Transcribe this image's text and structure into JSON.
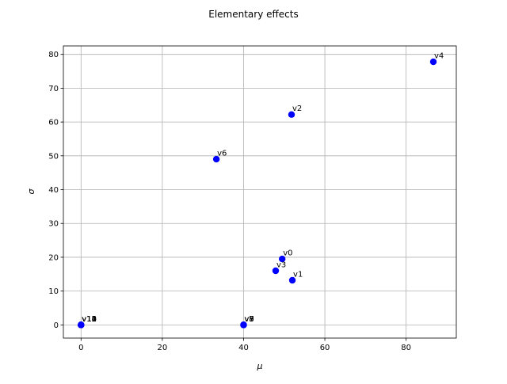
{
  "chart_data": {
    "type": "scatter",
    "title": "Elementary effects",
    "xlabel": "μ",
    "ylabel": "σ",
    "xlim": [
      -4.35,
      92.35
    ],
    "ylim": [
      -3.9,
      82.5
    ],
    "xticks": [
      0,
      20,
      40,
      60,
      80
    ],
    "yticks": [
      0,
      10,
      20,
      30,
      40,
      50,
      60,
      70,
      80
    ],
    "grid": true,
    "marker_color": "#0000ff",
    "points": [
      {
        "label": "v0",
        "x": 49.5,
        "y": 19.5
      },
      {
        "label": "v1",
        "x": 52.0,
        "y": 13.2
      },
      {
        "label": "v2",
        "x": 51.8,
        "y": 62.2
      },
      {
        "label": "v3",
        "x": 47.9,
        "y": 16.0
      },
      {
        "label": "v4",
        "x": 86.7,
        "y": 77.8
      },
      {
        "label": "v5",
        "x": 40.0,
        "y": 0.0
      },
      {
        "label": "v6",
        "x": 33.3,
        "y": 49.0
      },
      {
        "label": "v7",
        "x": 40.0,
        "y": 0.0
      },
      {
        "label": "v8",
        "x": 40.0,
        "y": 0.0
      },
      {
        "label": "v9",
        "x": 40.0,
        "y": 0.0
      },
      {
        "label": "v10",
        "x": 0.0,
        "y": 0.0
      },
      {
        "label": "v11",
        "x": 0.0,
        "y": 0.0
      },
      {
        "label": "v12",
        "x": 0.0,
        "y": 0.0
      },
      {
        "label": "v13",
        "x": 0.0,
        "y": 0.0
      },
      {
        "label": "v14",
        "x": 0.0,
        "y": 0.0
      }
    ]
  }
}
